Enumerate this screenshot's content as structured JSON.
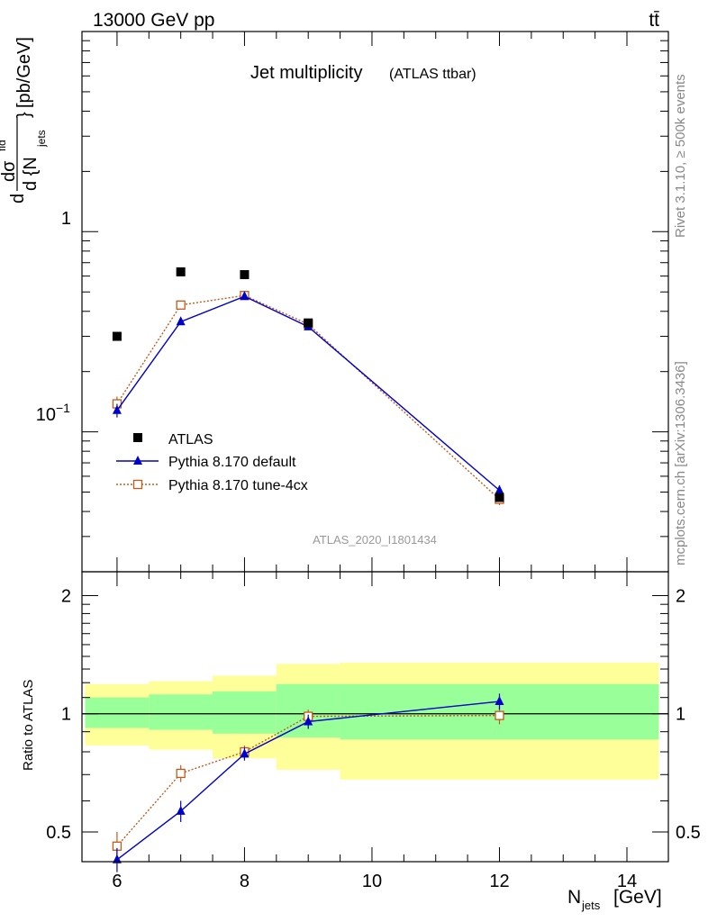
{
  "header": {
    "left": "13000 GeV pp",
    "right": "tt̄"
  },
  "side_labels": {
    "rivet": "Rivet 3.1.10, ≥ 500k events",
    "mcplots": "mcplots.cern.ch [arXiv:1306.3436]"
  },
  "chart_data": [
    {
      "type": "scatter",
      "title": "Jet multiplicity",
      "subtitle": "(ATLAS ttbar)",
      "analysis_id": "ATLAS_2020_I1801434",
      "ylabel_parts": {
        "d": "d",
        "sigma": "dσ",
        "fid": "fid",
        "denom": "d {N",
        "sub": "jets",
        "close": "}",
        "unit": "[pb/GeV]"
      },
      "y_scale": "log",
      "ylim": [
        0.02,
        10
      ],
      "xlim": [
        5.45,
        14.65
      ],
      "y_tick_labels": [
        {
          "value": 1,
          "label": "1"
        },
        {
          "value": 0.1,
          "label": "10",
          "sup": "−1"
        }
      ],
      "legend_position": "middle-left",
      "series": [
        {
          "name": "ATLAS",
          "color": "#000000",
          "marker": "square-filled",
          "x": [
            6,
            7,
            8,
            9,
            12
          ],
          "y": [
            0.3,
            0.63,
            0.61,
            0.35,
            0.047
          ]
        },
        {
          "name": "Pythia 8.170 default",
          "color": "#0000cc",
          "marker": "triangle",
          "line": "solid",
          "x": [
            6,
            7,
            8,
            9,
            12
          ],
          "y": [
            0.128,
            0.355,
            0.475,
            0.335,
            0.051
          ],
          "err": [
            0.01,
            0.012,
            0.012,
            0.01,
            0.003
          ]
        },
        {
          "name": "Pythia 8.170 tune-4cx",
          "color": "#c45a1a",
          "marker": "square-open",
          "line": "dotted",
          "x": [
            6,
            7,
            8,
            9,
            12
          ],
          "y": [
            0.138,
            0.43,
            0.48,
            0.345,
            0.046
          ],
          "err": [
            0.012,
            0.012,
            0.012,
            0.01,
            0.003
          ]
        }
      ]
    },
    {
      "type": "scatter",
      "ylabel": "Ratio to ATLAS",
      "xlabel_parts": {
        "n": "N",
        "sub": "jets",
        "unit": "[GeV]"
      },
      "ylim": [
        0.42,
        2.3
      ],
      "xlim": [
        5.45,
        14.65
      ],
      "x_ticks": [
        6,
        8,
        10,
        12,
        14
      ],
      "y_ticks": [
        0.5,
        1,
        2
      ],
      "reference_line": 1,
      "bands": [
        {
          "x0": 5.5,
          "x1": 6.5,
          "yellow": [
            0.83,
            1.19
          ],
          "green": [
            0.92,
            1.1
          ]
        },
        {
          "x0": 6.5,
          "x1": 7.5,
          "yellow": [
            0.81,
            1.21
          ],
          "green": [
            0.91,
            1.12
          ]
        },
        {
          "x0": 7.5,
          "x1": 8.5,
          "yellow": [
            0.77,
            1.25
          ],
          "green": [
            0.89,
            1.14
          ]
        },
        {
          "x0": 8.5,
          "x1": 9.5,
          "yellow": [
            0.72,
            1.34
          ],
          "green": [
            0.87,
            1.19
          ]
        },
        {
          "x0": 9.5,
          "x1": 14.5,
          "yellow": [
            0.68,
            1.35
          ],
          "green": [
            0.86,
            1.19
          ]
        }
      ],
      "series": [
        {
          "name": "Pythia 8.170 default",
          "color": "#0000cc",
          "marker": "triangle",
          "line": "solid",
          "x": [
            6,
            7,
            8,
            9,
            12
          ],
          "y": [
            0.425,
            0.565,
            0.79,
            0.955,
            1.075
          ],
          "err": [
            0.03,
            0.035,
            0.03,
            0.04,
            0.05
          ]
        },
        {
          "name": "Pythia 8.170 tune-4cx",
          "color": "#c45a1a",
          "marker": "square-open",
          "line": "dotted",
          "x": [
            6,
            7,
            8,
            9,
            12
          ],
          "y": [
            0.46,
            0.705,
            0.8,
            0.985,
            0.99
          ],
          "err": [
            0.04,
            0.035,
            0.03,
            0.04,
            0.05
          ]
        }
      ]
    }
  ]
}
